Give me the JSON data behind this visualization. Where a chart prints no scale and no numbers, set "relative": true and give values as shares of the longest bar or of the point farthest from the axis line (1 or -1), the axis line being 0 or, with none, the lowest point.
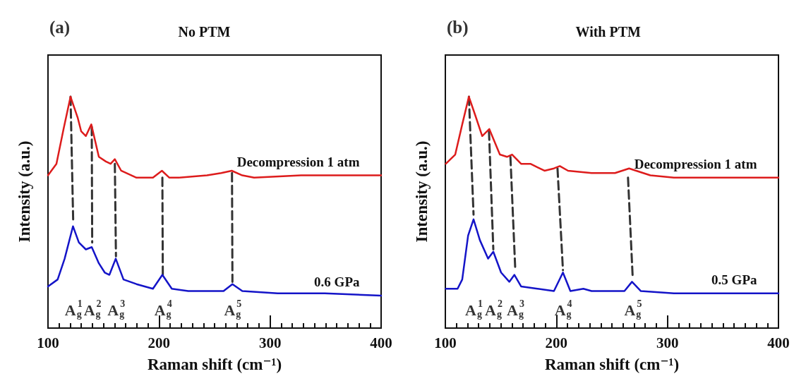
{
  "chart_data": [
    {
      "type": "line",
      "title": "No PTM",
      "xlabel": "Raman shift (cm⁻¹)",
      "ylabel": "Intensity (a.u.)",
      "relative": true,
      "xlim": [
        100,
        400
      ],
      "xticks": [
        100,
        {
          "value": 110,
          "label": null
        },
        {
          "value": 120,
          "label": null
        },
        {
          "value": 130,
          "label": null
        },
        {
          "value": 140,
          "label": null
        },
        {
          "value": 150,
          "label": null
        },
        {
          "value": 160,
          "label": null
        },
        {
          "value": 170,
          "label": null
        },
        {
          "value": 180,
          "label": null
        },
        {
          "value": 190,
          "label": null
        },
        200,
        {
          "value": 210,
          "label": null
        },
        {
          "value": 220,
          "label": null
        },
        {
          "value": 230,
          "label": null
        },
        {
          "value": 240,
          "label": null
        },
        {
          "value": 250,
          "label": null
        },
        {
          "value": 260,
          "label": null
        },
        {
          "value": 270,
          "label": null
        },
        {
          "value": 280,
          "label": null
        },
        {
          "value": 290,
          "label": null
        },
        300,
        {
          "value": 310,
          "label": null
        },
        {
          "value": 320,
          "label": null
        },
        {
          "value": 330,
          "label": null
        },
        {
          "value": 340,
          "label": null
        },
        {
          "value": 350,
          "label": null
        },
        {
          "value": 360,
          "label": null
        },
        {
          "value": 370,
          "label": null
        },
        {
          "value": 380,
          "label": null
        },
        {
          "value": 390,
          "label": null
        },
        400
      ],
      "annotations": [
        "(a)",
        "A$_{g}$$^{1}$",
        "A$_{g}$$^{2}$",
        "A$_{g}$$^{3}$",
        "A$_{g}$$^{4}$",
        "A$_{g}$$^{5}$"
      ],
      "series": [
        {
          "name": "Decompression 1 atm",
          "color": "#dd1c1c",
          "x": [
            100,
            107.6,
            114,
            120.3,
            126.7,
            129.9,
            134.1,
            139,
            145.8,
            152.1,
            156.4,
            160.2,
            165.9,
            179.7,
            194.5,
            202.6,
            209.3,
            217.8,
            243.2,
            256,
            265.5,
            275,
            285.6,
            328,
            370.4,
            400
          ],
          "values": [
            0.66,
            0.71,
            0.86,
            1.0,
            0.91,
            0.85,
            0.83,
            0.88,
            0.74,
            0.72,
            0.71,
            0.73,
            0.68,
            0.65,
            0.65,
            0.68,
            0.65,
            0.65,
            0.66,
            0.67,
            0.68,
            0.66,
            0.65,
            0.66,
            0.66,
            0.66
          ]
        },
        {
          "name": "0.6 GPa",
          "color": "#1414c8",
          "x": [
            100,
            108.7,
            115,
            122.5,
            127.8,
            134.1,
            139.4,
            145.8,
            151.1,
            155.3,
            161,
            168,
            179.7,
            194.5,
            203,
            211.5,
            226.3,
            258.1,
            266.1,
            275,
            306.8,
            349.2,
            400
          ],
          "values": [
            0.18,
            0.21,
            0.3,
            0.44,
            0.37,
            0.34,
            0.35,
            0.28,
            0.24,
            0.23,
            0.3,
            0.21,
            0.19,
            0.17,
            0.23,
            0.17,
            0.16,
            0.16,
            0.19,
            0.16,
            0.15,
            0.15,
            0.14
          ]
        },
        {
          "type": "line",
          "color": "#333333",
          "line_style": "dashed",
          "x": [
            120.3,
            122.7
          ],
          "values": [
            1.0,
            0.46
          ]
        },
        {
          "type": "line",
          "color": "#333333",
          "line_style": "dashed",
          "x": [
            139.4,
            139.8
          ],
          "values": [
            0.87,
            0.37
          ]
        },
        {
          "type": "line",
          "color": "#333333",
          "line_style": "dashed",
          "x": [
            160.2,
            161.2
          ],
          "values": [
            0.71,
            0.31
          ]
        },
        {
          "type": "line",
          "color": "#333333",
          "line_style": "dashed",
          "x": [
            203,
            203.4
          ],
          "values": [
            0.65,
            0.23
          ]
        },
        {
          "type": "line",
          "color": "#333333",
          "line_style": "dashed",
          "x": [
            265.7,
            266.1
          ],
          "values": [
            0.67,
            0.2
          ]
        }
      ]
    },
    {
      "type": "line",
      "title": "With PTM",
      "xlabel": "Raman shift (cm⁻¹)",
      "ylabel": "Intensity (a.u.)",
      "relative": true,
      "xlim": [
        100,
        400
      ],
      "xticks": [
        100,
        {
          "value": 110,
          "label": null
        },
        {
          "value": 120,
          "label": null
        },
        {
          "value": 130,
          "label": null
        },
        {
          "value": 140,
          "label": null
        },
        {
          "value": 150,
          "label": null
        },
        {
          "value": 160,
          "label": null
        },
        {
          "value": 170,
          "label": null
        },
        {
          "value": 180,
          "label": null
        },
        {
          "value": 190,
          "label": null
        },
        200,
        {
          "value": 210,
          "label": null
        },
        {
          "value": 220,
          "label": null
        },
        {
          "value": 230,
          "label": null
        },
        {
          "value": 240,
          "label": null
        },
        {
          "value": 250,
          "label": null
        },
        {
          "value": 260,
          "label": null
        },
        {
          "value": 270,
          "label": null
        },
        {
          "value": 280,
          "label": null
        },
        {
          "value": 290,
          "label": null
        },
        300,
        {
          "value": 310,
          "label": null
        },
        {
          "value": 320,
          "label": null
        },
        {
          "value": 330,
          "label": null
        },
        {
          "value": 340,
          "label": null
        },
        {
          "value": 350,
          "label": null
        },
        {
          "value": 360,
          "label": null
        },
        {
          "value": 370,
          "label": null
        },
        {
          "value": 380,
          "label": null
        },
        {
          "value": 390,
          "label": null
        },
        400
      ],
      "annotations": [
        "(b)",
        "A$_{g}$$^{1}$",
        "A$_{g}$$^{2}$",
        "A$_{g}$$^{3}$",
        "A$_{g}$$^{4}$",
        "A$_{g}$$^{5}$"
      ],
      "series": [
        {
          "name": "Decompression 1 atm",
          "color": "#dd1c1c",
          "x": [
            100.4,
            108.9,
            115.2,
            121.2,
            126.9,
            133.2,
            139.6,
            149.1,
            155.5,
            160.1,
            168.2,
            176.6,
            189.3,
            197.8,
            203.1,
            210.5,
            231.7,
            252.8,
            265.5,
            284.6,
            305.8,
            348.1,
            400
          ],
          "values": [
            0.71,
            0.75,
            0.88,
            1.0,
            0.92,
            0.83,
            0.86,
            0.75,
            0.74,
            0.75,
            0.71,
            0.71,
            0.68,
            0.69,
            0.7,
            0.68,
            0.67,
            0.67,
            0.69,
            0.66,
            0.65,
            0.65,
            0.65
          ]
        },
        {
          "name": "0.5 GPa",
          "color": "#1414c8",
          "x": [
            100.4,
            111,
            115.2,
            120.5,
            125.4,
            131.1,
            138.5,
            143.2,
            150.2,
            157.6,
            162.2,
            168.2,
            183,
            197.8,
            205.9,
            212.6,
            224.3,
            231.7,
            261.3,
            268.1,
            276.1,
            305.8,
            348.1,
            400
          ],
          "values": [
            0.17,
            0.17,
            0.21,
            0.4,
            0.47,
            0.38,
            0.3,
            0.33,
            0.24,
            0.2,
            0.23,
            0.18,
            0.17,
            0.16,
            0.24,
            0.16,
            0.17,
            0.16,
            0.16,
            0.2,
            0.16,
            0.15,
            0.15,
            0.15
          ]
        },
        {
          "type": "line",
          "color": "#333333",
          "line_style": "dashed",
          "x": [
            121.2,
            125.4
          ],
          "values": [
            1.0,
            0.49
          ]
        },
        {
          "type": "line",
          "color": "#333333",
          "line_style": "dashed",
          "x": [
            139.3,
            143.2
          ],
          "values": [
            0.85,
            0.34
          ]
        },
        {
          "type": "line",
          "color": "#333333",
          "line_style": "dashed",
          "x": [
            158.6,
            162.9
          ],
          "values": [
            0.74,
            0.26
          ]
        },
        {
          "type": "line",
          "color": "#333333",
          "line_style": "dashed",
          "x": [
            201,
            205.9
          ],
          "values": [
            0.69,
            0.25
          ]
        },
        {
          "type": "line",
          "color": "#333333",
          "line_style": "dashed",
          "x": [
            264.5,
            268.7
          ],
          "values": [
            0.65,
            0.22
          ]
        }
      ]
    }
  ]
}
